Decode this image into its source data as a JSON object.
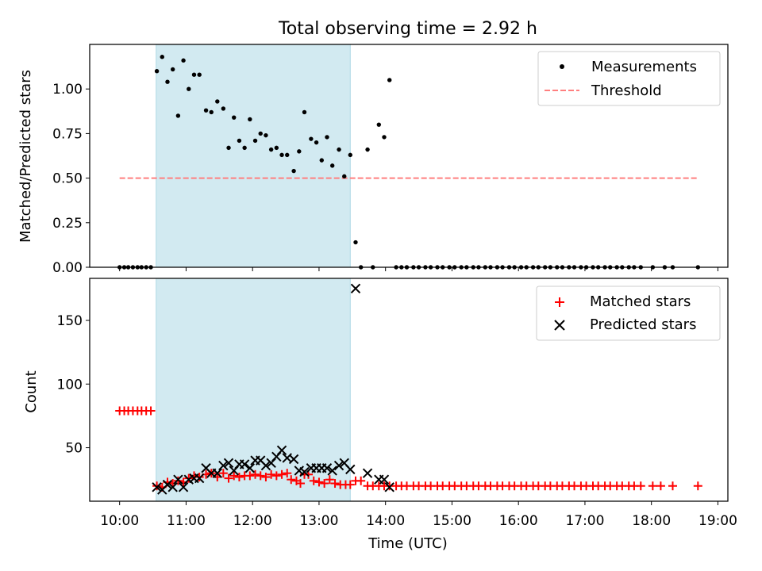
{
  "chart_data": [
    {
      "type": "scatter",
      "title": "Total observing time = 2.92 h",
      "ylabel": "Matched/Predicted stars",
      "ylim": [
        0,
        1.25
      ],
      "xlim": [
        9.55,
        19.15
      ],
      "yticks": [
        0.0,
        0.25,
        0.5,
        0.75,
        1.0
      ],
      "ytick_labels": [
        "0.00",
        "0.25",
        "0.50",
        "0.75",
        "1.00"
      ],
      "grid": false,
      "legend_position": "top-right",
      "shaded_interval": [
        10.55,
        13.47
      ],
      "shade_color": "#add8e6",
      "threshold": {
        "name": "Threshold",
        "y": 0.5,
        "x_range": [
          10.0,
          18.7
        ],
        "color": "#ff7f7f",
        "style": "dashed"
      },
      "series": [
        {
          "name": "Measurements",
          "marker": "dot",
          "color": "#000000",
          "x": [
            10.0,
            10.07,
            10.13,
            10.2,
            10.27,
            10.33,
            10.4,
            10.47,
            10.56,
            10.64,
            10.72,
            10.8,
            10.88,
            10.96,
            11.04,
            11.12,
            11.2,
            11.3,
            11.38,
            11.47,
            11.56,
            11.64,
            11.72,
            11.8,
            11.88,
            11.96,
            12.04,
            12.12,
            12.2,
            12.28,
            12.36,
            12.44,
            12.52,
            12.62,
            12.7,
            12.78,
            12.88,
            12.96,
            13.04,
            13.12,
            13.2,
            13.3,
            13.38,
            13.47,
            13.55,
            13.63,
            13.73,
            13.81,
            13.9,
            13.98,
            14.06,
            14.16,
            14.24,
            14.32,
            14.42,
            14.5,
            14.6,
            14.68,
            14.78,
            14.86,
            14.96,
            15.04,
            15.14,
            15.22,
            15.32,
            15.4,
            15.5,
            15.58,
            15.68,
            15.76,
            15.86,
            15.94,
            16.04,
            16.12,
            16.22,
            16.3,
            16.4,
            16.48,
            16.58,
            16.66,
            16.76,
            16.84,
            16.94,
            17.02,
            17.12,
            17.2,
            17.3,
            17.38,
            17.48,
            17.56,
            17.66,
            17.74,
            17.84,
            18.02,
            18.2,
            18.32,
            18.7
          ],
          "y": [
            0,
            0,
            0,
            0,
            0,
            0,
            0,
            0,
            1.1,
            1.18,
            1.04,
            1.11,
            0.85,
            1.16,
            1.0,
            1.08,
            1.08,
            0.88,
            0.87,
            0.93,
            0.89,
            0.67,
            0.84,
            0.71,
            0.67,
            0.83,
            0.71,
            0.75,
            0.74,
            0.66,
            0.67,
            0.63,
            0.63,
            0.54,
            0.65,
            0.87,
            0.72,
            0.7,
            0.6,
            0.73,
            0.57,
            0.66,
            0.51,
            0.63,
            0.14,
            0,
            0.66,
            0,
            0.8,
            0.73,
            1.05,
            0,
            0,
            0,
            0,
            0,
            0,
            0,
            0,
            0,
            0,
            0,
            0,
            0,
            0,
            0,
            0,
            0,
            0,
            0,
            0,
            0,
            0,
            0,
            0,
            0,
            0,
            0,
            0,
            0,
            0,
            0,
            0,
            0,
            0,
            0,
            0,
            0,
            0,
            0,
            0,
            0,
            0,
            0,
            0,
            0,
            0
          ]
        }
      ]
    },
    {
      "type": "scatter",
      "xlabel": "Time (UTC)",
      "ylabel": "Count",
      "ylim": [
        8,
        183
      ],
      "xlim": [
        9.55,
        19.15
      ],
      "yticks": [
        50,
        100,
        150
      ],
      "ytick_labels": [
        "50",
        "100",
        "150"
      ],
      "xticks": [
        10,
        11,
        12,
        13,
        14,
        15,
        16,
        17,
        18,
        19
      ],
      "xtick_labels": [
        "10:00",
        "11:00",
        "12:00",
        "13:00",
        "14:00",
        "15:00",
        "16:00",
        "17:00",
        "18:00",
        "19:00"
      ],
      "grid": false,
      "legend_position": "top-right",
      "shaded_interval": [
        10.55,
        13.47
      ],
      "shade_color": "#add8e6",
      "series": [
        {
          "name": "Matched stars",
          "marker": "plus",
          "color": "#ff0000",
          "x": [
            10.0,
            10.07,
            10.13,
            10.2,
            10.27,
            10.33,
            10.4,
            10.47,
            10.56,
            10.64,
            10.72,
            10.8,
            10.88,
            10.96,
            11.04,
            11.12,
            11.2,
            11.3,
            11.38,
            11.47,
            11.56,
            11.64,
            11.72,
            11.8,
            11.88,
            11.96,
            12.04,
            12.12,
            12.2,
            12.28,
            12.36,
            12.44,
            12.52,
            12.58,
            12.66,
            12.72,
            12.78,
            12.84,
            12.92,
            13.0,
            13.08,
            13.16,
            13.24,
            13.32,
            13.4,
            13.47,
            13.55,
            13.63,
            13.73,
            13.81,
            13.9,
            13.98,
            14.06,
            14.16,
            14.24,
            14.32,
            14.42,
            14.5,
            14.6,
            14.68,
            14.78,
            14.86,
            14.96,
            15.04,
            15.14,
            15.22,
            15.32,
            15.4,
            15.5,
            15.58,
            15.68,
            15.76,
            15.86,
            15.94,
            16.04,
            16.12,
            16.22,
            16.3,
            16.4,
            16.48,
            16.58,
            16.66,
            16.76,
            16.84,
            16.94,
            17.02,
            17.12,
            17.2,
            17.3,
            17.38,
            17.48,
            17.56,
            17.66,
            17.74,
            17.84,
            18.02,
            18.14,
            18.32,
            18.7
          ],
          "y": [
            79,
            79,
            79,
            79,
            79,
            79,
            79,
            79,
            20,
            19,
            23,
            22,
            24,
            23,
            26,
            28,
            27,
            29,
            30,
            27,
            30,
            26,
            28,
            27,
            28,
            28,
            29,
            28,
            27,
            29,
            28,
            29,
            30,
            25,
            24,
            22,
            29,
            29,
            24,
            23,
            22,
            25,
            22,
            21,
            21,
            21,
            24,
            24,
            20,
            20,
            20,
            20,
            20,
            20,
            20,
            20,
            20,
            20,
            20,
            20,
            20,
            20,
            20,
            20,
            20,
            20,
            20,
            20,
            20,
            20,
            20,
            20,
            20,
            20,
            20,
            20,
            20,
            20,
            20,
            20,
            20,
            20,
            20,
            20,
            20,
            20,
            20,
            20,
            20,
            20,
            20,
            20,
            20,
            20,
            20,
            20,
            20,
            20,
            20
          ]
        },
        {
          "name": "Predicted stars",
          "marker": "x",
          "color": "#000000",
          "x": [
            10.56,
            10.64,
            10.72,
            10.8,
            10.88,
            10.96,
            11.04,
            11.12,
            11.2,
            11.3,
            11.38,
            11.47,
            11.56,
            11.64,
            11.72,
            11.8,
            11.88,
            11.96,
            12.04,
            12.12,
            12.2,
            12.28,
            12.36,
            12.44,
            12.52,
            12.62,
            12.7,
            12.78,
            12.88,
            12.96,
            13.04,
            13.12,
            13.2,
            13.3,
            13.38,
            13.47,
            13.55,
            13.73,
            13.9,
            13.98,
            14.06
          ],
          "y": [
            19,
            17,
            21,
            19,
            25,
            19,
            25,
            26,
            26,
            34,
            30,
            30,
            36,
            38,
            32,
            37,
            37,
            34,
            40,
            40,
            36,
            38,
            43,
            48,
            42,
            41,
            32,
            31,
            34,
            34,
            34,
            34,
            32,
            36,
            38,
            33,
            175,
            30,
            25,
            25,
            19
          ]
        }
      ]
    }
  ]
}
